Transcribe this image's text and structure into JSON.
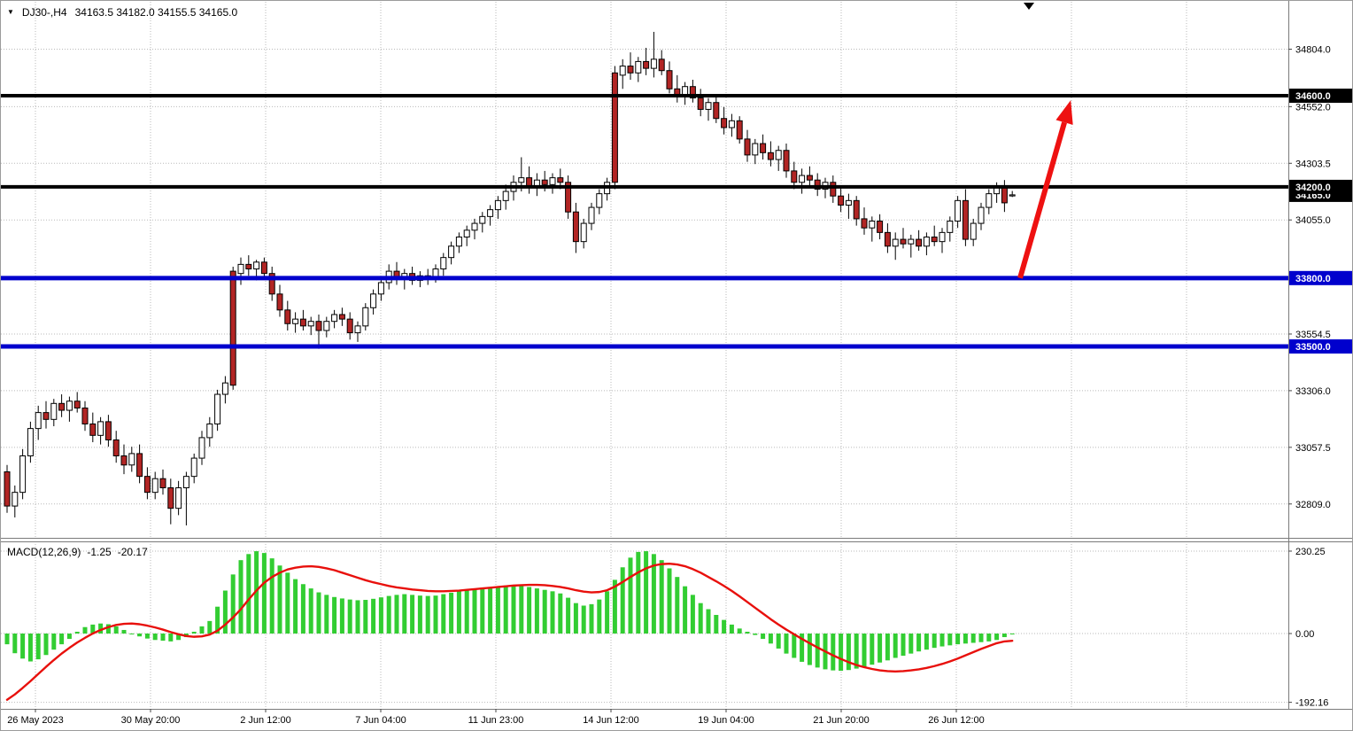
{
  "symbol_bar": {
    "symbol_period": "DJ30-,H4",
    "ohlc_text": "34163.5 34182.0 34155.5 34165.0"
  },
  "macd_bar": {
    "label": "MACD(12,26,9)",
    "main_value": "-1.25",
    "signal_value": "-20.17"
  },
  "chart_data": [
    {
      "type": "candlestick",
      "symbol": "DJ30-",
      "timeframe": "H4",
      "ohlc_current": {
        "open": 34163.5,
        "high": 34182.0,
        "low": 34155.5,
        "close": 34165.0
      },
      "current_price_label": "34165.0",
      "y_ticks": [
        34804.0,
        34552.0,
        34303.5,
        34055.0,
        33554.5,
        33306.0,
        33057.5,
        32809.0
      ],
      "grid_prices": [
        34804.0,
        34552.0,
        34303.5,
        34055.0,
        33806.5,
        33554.5,
        33306.0,
        33057.5,
        32809.0
      ],
      "x_labels": [
        "26 May 2023",
        "30 May 20:00",
        "2 Jun 12:00",
        "7 Jun 04:00",
        "11 Jun 23:00",
        "14 Jun 12:00",
        "19 Jun 04:00",
        "21 Jun 20:00",
        "26 Jun 12:00"
      ],
      "levels": [
        {
          "price": 34600.0,
          "label": "34600.0",
          "color": "#000000",
          "width": 4
        },
        {
          "price": 34200.0,
          "label": "34200.0",
          "color": "#000000",
          "width": 4
        },
        {
          "price": 33800.0,
          "label": "33800.0",
          "color": "#0000cd",
          "width": 5
        },
        {
          "price": 33500.0,
          "label": "33500.0",
          "color": "#0000cd",
          "width": 5
        }
      ],
      "annotation_arrow": {
        "from_bar": 130,
        "from_price": 33800,
        "to_bar": 136.5,
        "to_price": 34580,
        "color": "#ee1111",
        "width": 6
      },
      "colors": {
        "up_fill": "#ffffff",
        "down_fill": "#b22524",
        "outline": "#000000",
        "background": "#ffffff"
      },
      "candles_ohlc": [
        [
          32950,
          32980,
          32770,
          32800
        ],
        [
          32800,
          32890,
          32750,
          32860
        ],
        [
          32860,
          33050,
          32830,
          33020
        ],
        [
          33020,
          33170,
          32990,
          33140
        ],
        [
          33140,
          33240,
          33090,
          33210
        ],
        [
          33210,
          33260,
          33140,
          33180
        ],
        [
          33180,
          33270,
          33150,
          33250
        ],
        [
          33250,
          33290,
          33190,
          33220
        ],
        [
          33220,
          33280,
          33170,
          33260
        ],
        [
          33260,
          33300,
          33210,
          33230
        ],
        [
          33230,
          33260,
          33130,
          33160
        ],
        [
          33160,
          33210,
          33080,
          33110
        ],
        [
          33110,
          33190,
          33070,
          33170
        ],
        [
          33170,
          33200,
          33060,
          33090
        ],
        [
          33090,
          33130,
          32990,
          33020
        ],
        [
          33020,
          33070,
          32940,
          32980
        ],
        [
          32980,
          33060,
          32950,
          33030
        ],
        [
          33030,
          33070,
          32900,
          32930
        ],
        [
          32930,
          32970,
          32830,
          32860
        ],
        [
          32860,
          32950,
          32830,
          32920
        ],
        [
          32920,
          32960,
          32850,
          32880
        ],
        [
          32880,
          32920,
          32720,
          32790
        ],
        [
          32790,
          32910,
          32760,
          32880
        ],
        [
          32880,
          32950,
          32715,
          32930
        ],
        [
          32930,
          33030,
          32900,
          33010
        ],
        [
          33010,
          33130,
          32980,
          33100
        ],
        [
          33100,
          33190,
          33060,
          33160
        ],
        [
          33160,
          33310,
          33130,
          33290
        ],
        [
          33290,
          33370,
          33250,
          33340
        ],
        [
          33830,
          33850,
          33310,
          33330
        ],
        [
          33820,
          33890,
          33770,
          33860
        ],
        [
          33860,
          33900,
          33810,
          33840
        ],
        [
          33840,
          33880,
          33790,
          33870
        ],
        [
          33870,
          33890,
          33800,
          33820
        ],
        [
          33820,
          33850,
          33700,
          33730
        ],
        [
          33730,
          33770,
          33630,
          33660
        ],
        [
          33660,
          33700,
          33570,
          33600
        ],
        [
          33600,
          33650,
          33560,
          33620
        ],
        [
          33620,
          33660,
          33570,
          33590
        ],
        [
          33590,
          33630,
          33550,
          33610
        ],
        [
          33610,
          33640,
          33490,
          33570
        ],
        [
          33570,
          33630,
          33540,
          33610
        ],
        [
          33610,
          33660,
          33580,
          33640
        ],
        [
          33640,
          33670,
          33590,
          33620
        ],
        [
          33620,
          33650,
          33530,
          33560
        ],
        [
          33560,
          33610,
          33520,
          33590
        ],
        [
          33590,
          33690,
          33570,
          33670
        ],
        [
          33670,
          33750,
          33640,
          33730
        ],
        [
          33730,
          33800,
          33700,
          33780
        ],
        [
          33780,
          33860,
          33750,
          33830
        ],
        [
          33830,
          33870,
          33770,
          33800
        ],
        [
          33800,
          33840,
          33750,
          33820
        ],
        [
          33820,
          33850,
          33770,
          33790
        ],
        [
          33790,
          33830,
          33760,
          33810
        ],
        [
          33810,
          33840,
          33770,
          33800
        ],
        [
          33800,
          33860,
          33780,
          33840
        ],
        [
          33840,
          33910,
          33810,
          33890
        ],
        [
          33890,
          33960,
          33860,
          33940
        ],
        [
          33940,
          34000,
          33910,
          33980
        ],
        [
          33980,
          34030,
          33940,
          34010
        ],
        [
          34010,
          34060,
          33970,
          34040
        ],
        [
          34040,
          34090,
          34000,
          34070
        ],
        [
          34070,
          34120,
          34030,
          34100
        ],
        [
          34100,
          34160,
          34060,
          34140
        ],
        [
          34140,
          34210,
          34100,
          34180
        ],
        [
          34180,
          34250,
          34140,
          34220
        ],
        [
          34220,
          34330,
          34180,
          34240
        ],
        [
          34240,
          34290,
          34170,
          34200
        ],
        [
          34200,
          34260,
          34160,
          34230
        ],
        [
          34230,
          34270,
          34180,
          34210
        ],
        [
          34210,
          34260,
          34170,
          34240
        ],
        [
          34240,
          34280,
          34190,
          34220
        ],
        [
          34220,
          34250,
          34060,
          34090
        ],
        [
          34090,
          34130,
          33910,
          33960
        ],
        [
          33960,
          34060,
          33930,
          34040
        ],
        [
          34040,
          34130,
          34010,
          34110
        ],
        [
          34110,
          34190,
          34080,
          34170
        ],
        [
          34170,
          34240,
          34140,
          34220
        ],
        [
          34700,
          34730,
          34190,
          34220
        ],
        [
          34690,
          34760,
          34630,
          34730
        ],
        [
          34730,
          34790,
          34670,
          34700
        ],
        [
          34700,
          34770,
          34660,
          34750
        ],
        [
          34750,
          34810,
          34690,
          34720
        ],
        [
          34720,
          34880,
          34680,
          34760
        ],
        [
          34760,
          34800,
          34690,
          34710
        ],
        [
          34710,
          34750,
          34610,
          34630
        ],
        [
          34630,
          34690,
          34570,
          34600
        ],
        [
          34600,
          34660,
          34560,
          34640
        ],
        [
          34640,
          34670,
          34570,
          34590
        ],
        [
          34590,
          34630,
          34510,
          34540
        ],
        [
          34540,
          34590,
          34490,
          34570
        ],
        [
          34570,
          34600,
          34480,
          34500
        ],
        [
          34500,
          34550,
          34430,
          34460
        ],
        [
          34460,
          34520,
          34420,
          34490
        ],
        [
          34490,
          34510,
          34390,
          34410
        ],
        [
          34410,
          34450,
          34310,
          34340
        ],
        [
          34340,
          34410,
          34300,
          34390
        ],
        [
          34390,
          34430,
          34320,
          34350
        ],
        [
          34350,
          34400,
          34290,
          34320
        ],
        [
          34320,
          34380,
          34270,
          34360
        ],
        [
          34360,
          34390,
          34240,
          34270
        ],
        [
          34270,
          34310,
          34190,
          34220
        ],
        [
          34220,
          34280,
          34170,
          34250
        ],
        [
          34250,
          34290,
          34200,
          34230
        ],
        [
          34230,
          34260,
          34160,
          34190
        ],
        [
          34190,
          34240,
          34150,
          34220
        ],
        [
          34220,
          34250,
          34130,
          34160
        ],
        [
          34160,
          34200,
          34090,
          34120
        ],
        [
          34120,
          34170,
          34060,
          34140
        ],
        [
          34140,
          34160,
          34030,
          34060
        ],
        [
          34060,
          34110,
          33990,
          34020
        ],
        [
          34020,
          34070,
          33960,
          34050
        ],
        [
          34050,
          34080,
          33970,
          34000
        ],
        [
          34000,
          34040,
          33910,
          33940
        ],
        [
          33940,
          34000,
          33880,
          33970
        ],
        [
          33970,
          34020,
          33930,
          33950
        ],
        [
          33950,
          33990,
          33890,
          33970
        ],
        [
          33970,
          34010,
          33920,
          33940
        ],
        [
          33940,
          34000,
          33900,
          33980
        ],
        [
          33980,
          34030,
          33940,
          33960
        ],
        [
          33960,
          34020,
          33910,
          34000
        ],
        [
          34000,
          34070,
          33960,
          34050
        ],
        [
          34050,
          34160,
          34020,
          34140
        ],
        [
          34140,
          34190,
          33940,
          33970
        ],
        [
          33970,
          34060,
          33940,
          34040
        ],
        [
          34040,
          34130,
          34010,
          34110
        ],
        [
          34110,
          34190,
          34080,
          34170
        ],
        [
          34170,
          34220,
          34130,
          34200
        ],
        [
          34200,
          34230,
          34090,
          34130
        ],
        [
          34163.5,
          34182,
          34155.5,
          34165
        ]
      ]
    },
    {
      "type": "macd",
      "label": "MACD(12,26,9)",
      "main_last": -1.25,
      "signal_last": -20.17,
      "y_ticks": [
        230.25,
        0.0,
        -192.16
      ],
      "colors": {
        "histogram": "#32CD32",
        "signal": "#e8100c"
      },
      "histogram": [
        -30,
        -55,
        -70,
        -78,
        -72,
        -60,
        -45,
        -30,
        -15,
        5,
        18,
        25,
        28,
        26,
        20,
        10,
        0,
        -8,
        -14,
        -18,
        -20,
        -22,
        -18,
        -10,
        5,
        20,
        35,
        75,
        120,
        165,
        205,
        222,
        230,
        225,
        210,
        190,
        170,
        152,
        138,
        126,
        115,
        108,
        102,
        98,
        95,
        93,
        94,
        97,
        101,
        105,
        108,
        110,
        108,
        106,
        105,
        106,
        110,
        114,
        118,
        122,
        125,
        128,
        130,
        132,
        134,
        135,
        134,
        130,
        126,
        122,
        118,
        112,
        100,
        85,
        78,
        82,
        95,
        118,
        150,
        185,
        212,
        228,
        230,
        222,
        205,
        182,
        158,
        132,
        108,
        85,
        68,
        52,
        38,
        25,
        14,
        5,
        -4,
        -15,
        -28,
        -42,
        -56,
        -68,
        -79,
        -88,
        -95,
        -100,
        -103,
        -104,
        -102,
        -98,
        -93,
        -87,
        -81,
        -75,
        -68,
        -62,
        -56,
        -50,
        -45,
        -40,
        -36,
        -33,
        -30,
        -28,
        -26,
        -24,
        -22,
        -18,
        -10,
        -1.25
      ],
      "signal": [
        -185,
        -170,
        -152,
        -133,
        -113,
        -93,
        -74,
        -56,
        -40,
        -25,
        -12,
        0,
        10,
        18,
        24,
        27,
        28,
        26,
        22,
        17,
        11,
        4,
        -2,
        -7,
        -9,
        -8,
        -3,
        8,
        25,
        45,
        68,
        95,
        120,
        142,
        158,
        170,
        179,
        184,
        187,
        188,
        186,
        182,
        177,
        170,
        163,
        156,
        149,
        143,
        138,
        133,
        129,
        126,
        123,
        121,
        119,
        118,
        118,
        119,
        120,
        122,
        124,
        126,
        128,
        130,
        132,
        134,
        135,
        136,
        136,
        135,
        133,
        130,
        126,
        121,
        117,
        115,
        116,
        121,
        131,
        144,
        158,
        171,
        182,
        190,
        194,
        195,
        193,
        188,
        180,
        170,
        158,
        146,
        133,
        119,
        104,
        88,
        72,
        56,
        40,
        25,
        11,
        -2,
        -15,
        -27,
        -39,
        -50,
        -61,
        -71,
        -80,
        -88,
        -94,
        -99,
        -103,
        -105,
        -106,
        -105,
        -103,
        -100,
        -96,
        -91,
        -85,
        -78,
        -70,
        -61,
        -52,
        -43,
        -35,
        -27,
        -22,
        -20.17
      ]
    }
  ]
}
